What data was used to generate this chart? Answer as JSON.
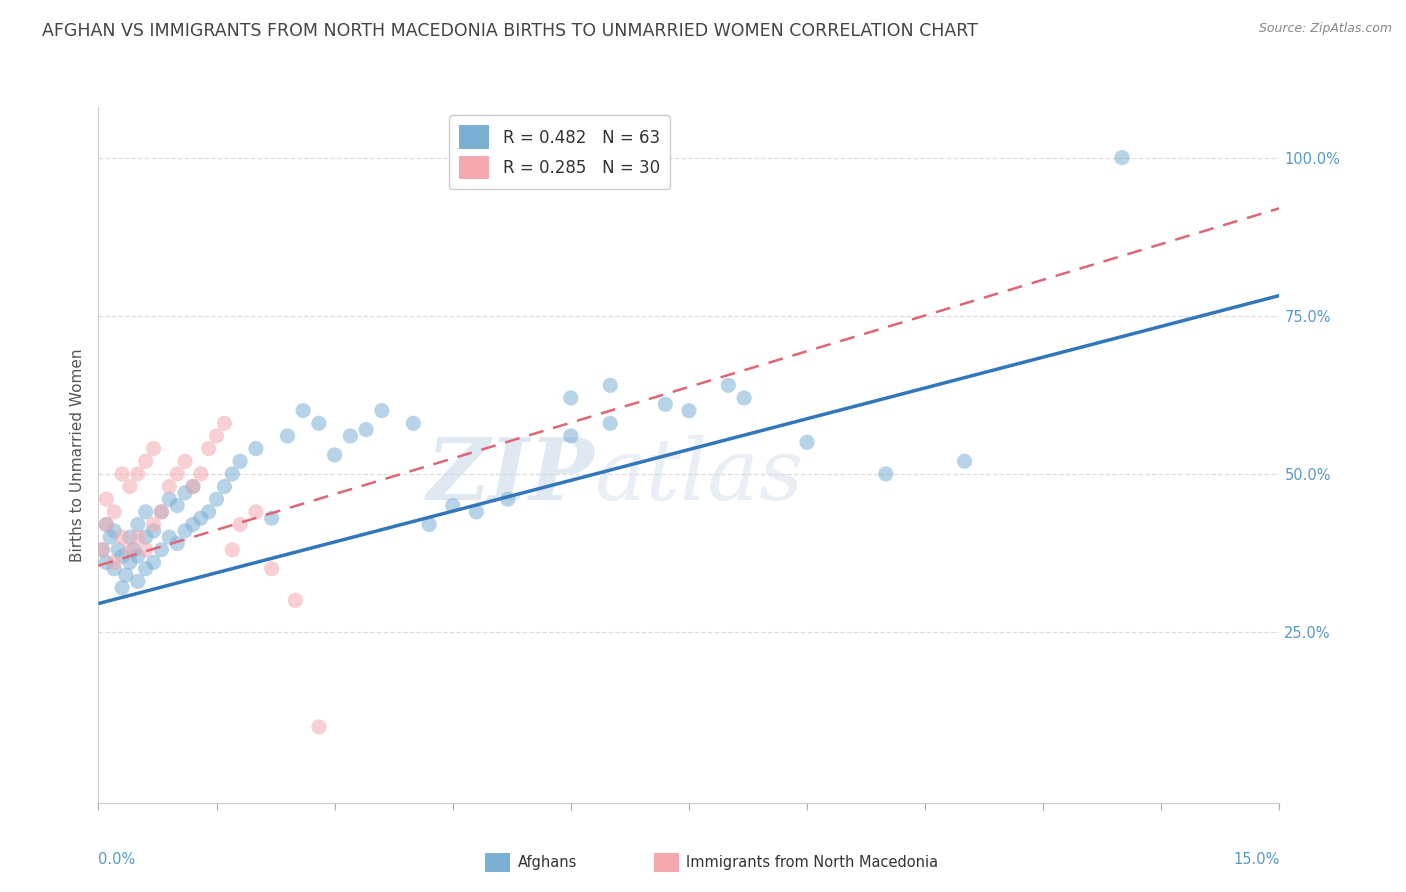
{
  "title": "AFGHAN VS IMMIGRANTS FROM NORTH MACEDONIA BIRTHS TO UNMARRIED WOMEN CORRELATION CHART",
  "source": "Source: ZipAtlas.com",
  "ylabel": "Births to Unmarried Women",
  "ytick_vals": [
    0.25,
    0.5,
    0.75,
    1.0
  ],
  "ytick_labels": [
    "25.0%",
    "50.0%",
    "75.0%",
    "100.0%"
  ],
  "xlim": [
    0.0,
    0.15
  ],
  "ylim": [
    -0.02,
    1.08
  ],
  "legend1_label": "R = 0.482   N = 63",
  "legend2_label": "R = 0.285   N = 30",
  "legend1_color": "#7BAFD4",
  "legend2_color": "#F4A8B0",
  "watermark_zip": "ZIP",
  "watermark_atlas": "atlas",
  "blue_line_x0": 0.0,
  "blue_line_y0": 0.295,
  "blue_line_x1": 0.15,
  "blue_line_y1": 0.782,
  "pink_line_x0": 0.0,
  "pink_line_y0": 0.355,
  "pink_line_x1": 0.15,
  "pink_line_y1": 0.92,
  "title_fontsize": 12.5,
  "axis_label_fontsize": 11,
  "tick_fontsize": 10.5,
  "scatter_alpha": 0.55,
  "scatter_size": 120,
  "bg_color": "#FFFFFF",
  "grid_color": "#DDDDDD",
  "title_color": "#444444",
  "axis_label_color": "#555555",
  "tick_color": "#5599CC",
  "source_color": "#888888",
  "blue_scatter_x": [
    0.0005,
    0.001,
    0.001,
    0.0015,
    0.002,
    0.002,
    0.0025,
    0.003,
    0.003,
    0.0035,
    0.004,
    0.004,
    0.0045,
    0.005,
    0.005,
    0.005,
    0.006,
    0.006,
    0.006,
    0.007,
    0.007,
    0.008,
    0.008,
    0.009,
    0.009,
    0.01,
    0.01,
    0.011,
    0.011,
    0.012,
    0.012,
    0.013,
    0.014,
    0.015,
    0.016,
    0.017,
    0.018,
    0.02,
    0.022,
    0.024,
    0.026,
    0.028,
    0.03,
    0.032,
    0.034,
    0.036,
    0.04,
    0.042,
    0.045,
    0.048,
    0.052,
    0.06,
    0.065,
    0.072,
    0.08,
    0.06,
    0.065,
    0.075,
    0.082,
    0.09,
    0.1,
    0.11,
    0.13
  ],
  "blue_scatter_y": [
    0.38,
    0.42,
    0.36,
    0.4,
    0.35,
    0.41,
    0.38,
    0.32,
    0.37,
    0.34,
    0.36,
    0.4,
    0.38,
    0.33,
    0.37,
    0.42,
    0.35,
    0.4,
    0.44,
    0.36,
    0.41,
    0.38,
    0.44,
    0.4,
    0.46,
    0.39,
    0.45,
    0.41,
    0.47,
    0.42,
    0.48,
    0.43,
    0.44,
    0.46,
    0.48,
    0.5,
    0.52,
    0.54,
    0.43,
    0.56,
    0.6,
    0.58,
    0.53,
    0.56,
    0.57,
    0.6,
    0.58,
    0.42,
    0.45,
    0.44,
    0.46,
    0.56,
    0.58,
    0.61,
    0.64,
    0.62,
    0.64,
    0.6,
    0.62,
    0.55,
    0.5,
    0.52,
    1.0
  ],
  "pink_scatter_x": [
    0.0005,
    0.001,
    0.001,
    0.002,
    0.002,
    0.003,
    0.003,
    0.004,
    0.004,
    0.005,
    0.005,
    0.006,
    0.006,
    0.007,
    0.007,
    0.008,
    0.009,
    0.01,
    0.011,
    0.012,
    0.013,
    0.014,
    0.015,
    0.016,
    0.017,
    0.018,
    0.02,
    0.022,
    0.025,
    0.028
  ],
  "pink_scatter_y": [
    0.38,
    0.42,
    0.46,
    0.36,
    0.44,
    0.4,
    0.5,
    0.38,
    0.48,
    0.4,
    0.5,
    0.38,
    0.52,
    0.42,
    0.54,
    0.44,
    0.48,
    0.5,
    0.52,
    0.48,
    0.5,
    0.54,
    0.56,
    0.58,
    0.38,
    0.42,
    0.44,
    0.35,
    0.3,
    0.1
  ]
}
